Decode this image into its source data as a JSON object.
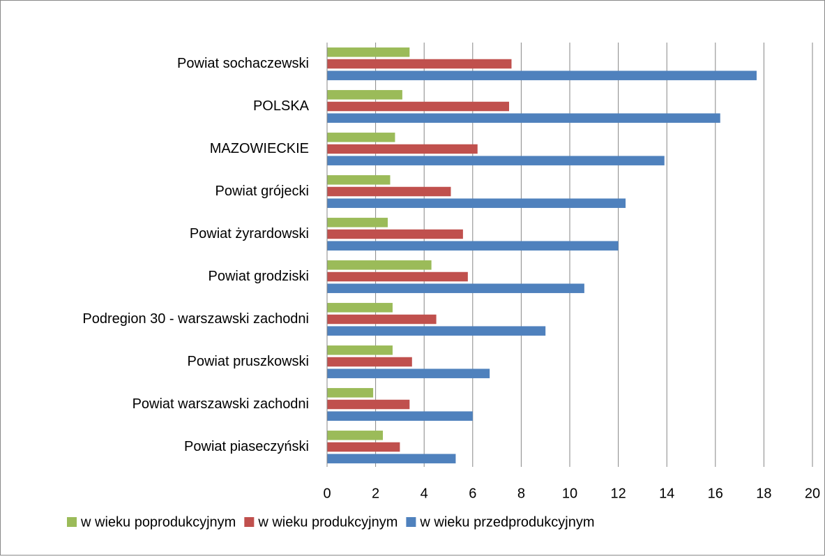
{
  "chart_data": {
    "type": "barh",
    "categories": [
      "Powiat sochaczewski",
      "POLSKA",
      "MAZOWIECKIE",
      "Powiat grójecki",
      "Powiat żyrardowski",
      "Powiat grodziski",
      "Podregion 30 - warszawski zachodni",
      "Powiat pruszkowski",
      "Powiat warszawski zachodni",
      "Powiat piaseczyński"
    ],
    "series": [
      {
        "name": "w wieku poprodukcyjnym",
        "color": "#9bbb59",
        "values": [
          3.4,
          3.1,
          2.8,
          2.6,
          2.5,
          4.3,
          2.7,
          2.7,
          1.9,
          2.3
        ]
      },
      {
        "name": "w wieku produkcyjnym",
        "color": "#c0504d",
        "values": [
          7.6,
          7.5,
          6.2,
          5.1,
          5.6,
          5.8,
          4.5,
          3.5,
          3.4,
          3.0
        ]
      },
      {
        "name": "w wieku przedprodukcyjnym",
        "color": "#4f81bd",
        "values": [
          17.7,
          16.2,
          13.9,
          12.3,
          12.0,
          10.6,
          9.0,
          6.7,
          6.0,
          5.3
        ]
      }
    ],
    "xlim": [
      0,
      20
    ],
    "xticks": [
      0,
      2,
      4,
      6,
      8,
      10,
      12,
      14,
      16,
      18,
      20
    ],
    "grid": true,
    "legend": "bottom"
  }
}
